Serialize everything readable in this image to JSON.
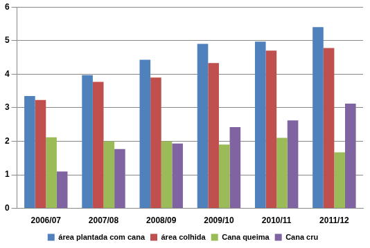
{
  "chart_data": {
    "type": "bar",
    "categories": [
      "2006/07",
      "2007/08",
      "2008/09",
      "2009/10",
      "2010/11",
      "2011/12"
    ],
    "series": [
      {
        "name": "área plantada com cana",
        "color": "#4F81BD",
        "values": [
          3.35,
          3.97,
          4.43,
          4.9,
          4.97,
          5.4
        ]
      },
      {
        "name": "área colhida",
        "color": "#C0504D",
        "values": [
          3.23,
          3.77,
          3.9,
          4.33,
          4.7,
          4.78
        ]
      },
      {
        "name": "Cana queima",
        "color": "#9BBB59",
        "values": [
          2.12,
          2.0,
          2.0,
          1.9,
          2.1,
          1.67
        ]
      },
      {
        "name": "Cana cru",
        "color": "#8064A2",
        "values": [
          1.1,
          1.77,
          1.93,
          2.42,
          2.62,
          3.12
        ]
      }
    ],
    "ylim": [
      0,
      6
    ],
    "yticks": [
      0,
      1,
      2,
      3,
      4,
      5,
      6
    ],
    "grid": true,
    "legend": "bottom"
  }
}
